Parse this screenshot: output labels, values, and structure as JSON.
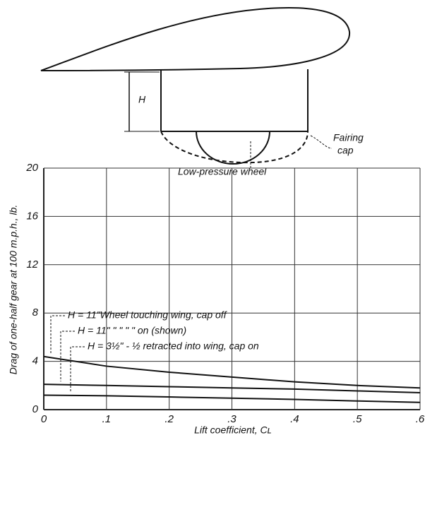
{
  "diagram": {
    "height_label": "H",
    "fairing_label": [
      "Fairing",
      "cap"
    ],
    "wheel_label": "Low-pressure wheel"
  },
  "chart_data": {
    "type": "line",
    "x_label": "Lift coefficient, Cʟ",
    "y_label": "Drag of one-half gear at 100 m.p.h., lb.",
    "x": [
      0,
      0.1,
      0.2,
      0.3,
      0.4,
      0.5,
      0.6
    ],
    "series": [
      {
        "name": "H = 11\"Wheel touching wing, cap off",
        "color": "#111",
        "values": [
          4.4,
          3.6,
          3.1,
          2.7,
          2.3,
          2.0,
          1.8
        ]
      },
      {
        "name": "H = 11\"   \"    \"    \"    \"   on (shown)",
        "color": "#111",
        "values": [
          2.1,
          2.0,
          1.9,
          1.8,
          1.7,
          1.55,
          1.4
        ]
      },
      {
        "name": "H = 3½\"   -   ½ retracted into wing, cap on",
        "color": "#111",
        "values": [
          1.2,
          1.15,
          1.05,
          0.95,
          0.85,
          0.72,
          0.6
        ]
      }
    ],
    "xlim": [
      0,
      0.6
    ],
    "xticks": [
      {
        "value": 0,
        "label": "0"
      },
      {
        "value": 0.1,
        "label": ".1"
      },
      {
        "value": 0.2,
        "label": ".2"
      },
      {
        "value": 0.3,
        "label": ".3"
      },
      {
        "value": 0.4,
        "label": ".4"
      },
      {
        "value": 0.5,
        "label": ".5"
      },
      {
        "value": 0.6,
        "label": ".6"
      }
    ],
    "ylim": [
      0,
      20
    ],
    "yticks": [
      0,
      4,
      8,
      12,
      16,
      20
    ],
    "grid": true
  }
}
